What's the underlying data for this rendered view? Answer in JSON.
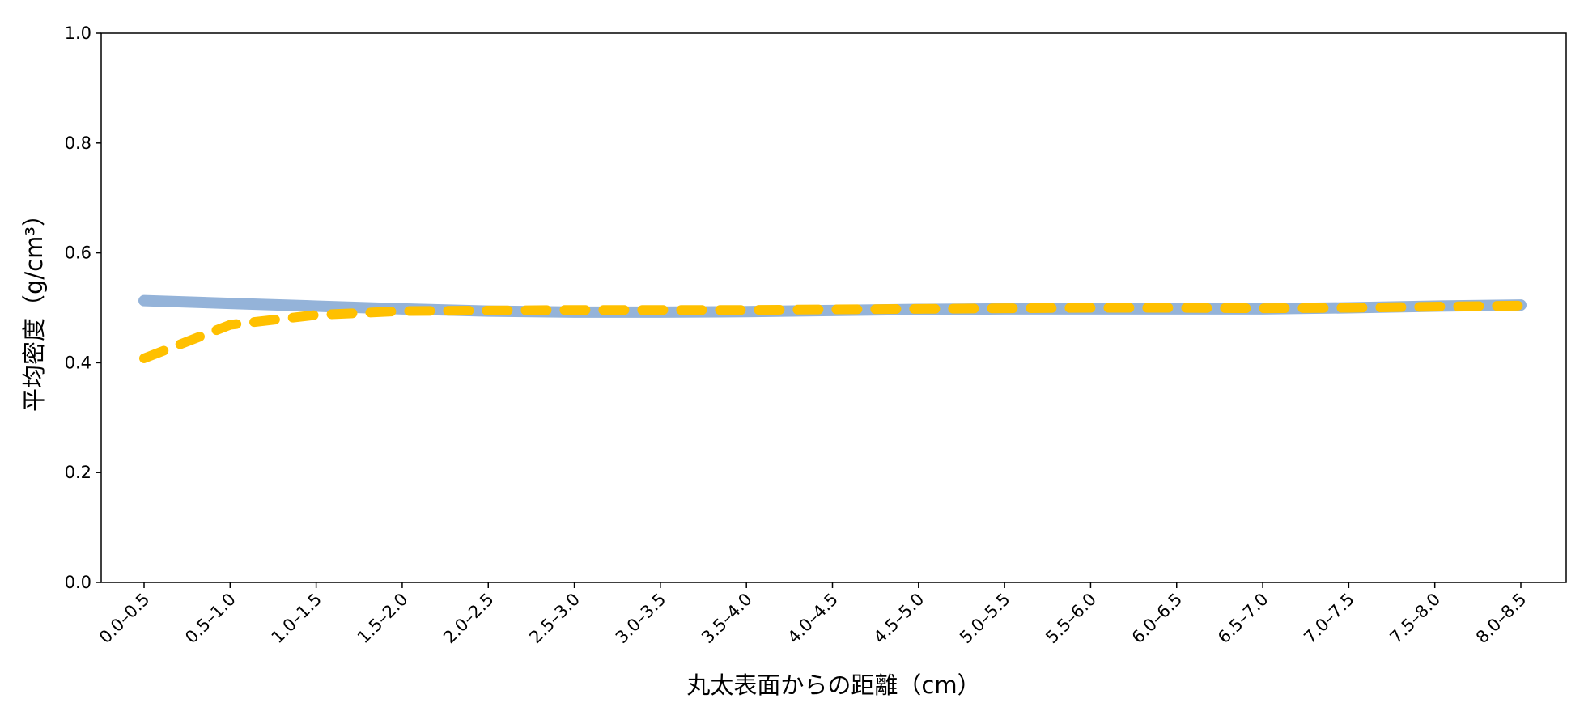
{
  "chart_data": {
    "type": "line",
    "xlabel": "丸太表面からの距離（cm）",
    "ylabel": "平均密度（g/cm³）",
    "categories": [
      "0.0–0.5",
      "0.5–1.0",
      "1.0–1.5",
      "1.5–2.0",
      "2.0–2.5",
      "2.5–3.0",
      "3.0–3.5",
      "3.5–4.0",
      "4.0–4.5",
      "4.5–5.0",
      "5.0–5.5",
      "5.5–6.0",
      "6.0–6.5",
      "6.5–7.0",
      "7.0–7.5",
      "7.5–8.0",
      "8.0–8.5"
    ],
    "series": [
      {
        "color": "#94b3d9",
        "style": "solid",
        "values": [
          0.513,
          0.508,
          0.503,
          0.498,
          0.494,
          0.492,
          0.492,
          0.493,
          0.495,
          0.497,
          0.498,
          0.498,
          0.498,
          0.498,
          0.5,
          0.503,
          0.505
        ]
      },
      {
        "color": "#ffc000",
        "style": "dashed",
        "values": [
          0.408,
          0.469,
          0.487,
          0.494,
          0.495,
          0.496,
          0.496,
          0.496,
          0.497,
          0.498,
          0.499,
          0.5,
          0.5,
          0.499,
          0.5,
          0.502,
          0.504
        ]
      }
    ],
    "ylim": [
      0,
      1
    ],
    "yticks": [
      {
        "value": 0,
        "label": "0.0"
      },
      0.2,
      0.4,
      0.6,
      0.8,
      {
        "value": 1,
        "label": "1.0"
      }
    ],
    "grid": false
  }
}
